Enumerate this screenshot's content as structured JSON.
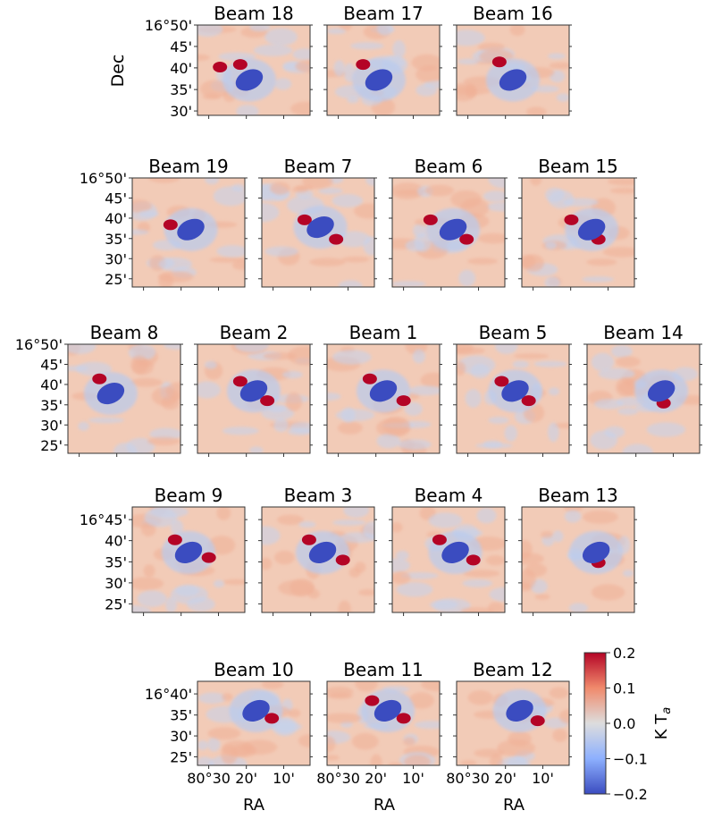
{
  "chart_data": {
    "type": "heatmap",
    "colorbar": {
      "label": "K T",
      "label_subscript": "a",
      "vmin": -0.2,
      "vmax": 0.2,
      "ticks": [
        "0.2",
        "0.1",
        "0.0",
        "−0.1",
        "−0.2"
      ],
      "colors": {
        "low": "#3b4cc0",
        "mid": "#dddddd",
        "high": "#b40426"
      }
    },
    "y_axis_label": "Dec",
    "x_axis_label": "RA",
    "x_ticks": [
      "80°30",
      "20'",
      "10'"
    ],
    "rows": [
      {
        "y_ticks": [
          "16°50'",
          "45'",
          "40'",
          "35'",
          "30'"
        ],
        "y_ticks_dec": [
          16.833,
          16.75,
          16.667,
          16.583,
          16.5
        ],
        "dec_range": [
          16.483,
          16.833
        ],
        "show_ylabel": true,
        "panels": [
          {
            "title": "Beam 18",
            "neg": {
              "ra": 80.32,
              "dec": 16.62
            },
            "pos": [
              {
                "ra": 80.36,
                "dec": 16.68
              },
              {
                "ra": 80.45,
                "dec": 16.67
              }
            ]
          },
          {
            "title": "Beam 17",
            "neg": {
              "ra": 80.32,
              "dec": 16.62
            },
            "pos": [
              {
                "ra": 80.39,
                "dec": 16.68
              }
            ]
          },
          {
            "title": "Beam 16",
            "neg": {
              "ra": 80.3,
              "dec": 16.62
            },
            "pos": [
              {
                "ra": 80.36,
                "dec": 16.69
              }
            ]
          }
        ]
      },
      {
        "y_ticks": [
          "16°50'",
          "45'",
          "40'",
          "35'",
          "30'",
          "25'"
        ],
        "y_ticks_dec": [
          16.833,
          16.75,
          16.667,
          16.583,
          16.5,
          16.417
        ],
        "dec_range": [
          16.383,
          16.833
        ],
        "show_ylabel": false,
        "panels": [
          {
            "title": "Beam 19",
            "neg": {
              "ra": 80.29,
              "dec": 16.62
            },
            "pos": [
              {
                "ra": 80.38,
                "dec": 16.64
              }
            ]
          },
          {
            "title": "Beam 7",
            "neg": {
              "ra": 80.29,
              "dec": 16.63
            },
            "pos": [
              {
                "ra": 80.36,
                "dec": 16.66
              },
              {
                "ra": 80.22,
                "dec": 16.58
              }
            ]
          },
          {
            "title": "Beam 6",
            "neg": {
              "ra": 80.28,
              "dec": 16.62
            },
            "pos": [
              {
                "ra": 80.38,
                "dec": 16.66
              },
              {
                "ra": 80.22,
                "dec": 16.58
              }
            ]
          },
          {
            "title": "Beam 15",
            "neg": {
              "ra": 80.24,
              "dec": 16.62
            },
            "pos": [
              {
                "ra": 80.33,
                "dec": 16.66
              },
              {
                "ra": 80.21,
                "dec": 16.58
              }
            ]
          }
        ]
      },
      {
        "y_ticks": [
          "16°50'",
          "45'",
          "40'",
          "35'",
          "30'",
          "25'"
        ],
        "y_ticks_dec": [
          16.833,
          16.75,
          16.667,
          16.583,
          16.5,
          16.417
        ],
        "dec_range": [
          16.383,
          16.833
        ],
        "show_ylabel": false,
        "panels": [
          {
            "title": "Beam 8",
            "neg": {
              "ra": 80.36,
              "dec": 16.63
            },
            "pos": [
              {
                "ra": 80.41,
                "dec": 16.69
              }
            ]
          },
          {
            "title": "Beam 2",
            "neg": {
              "ra": 80.3,
              "dec": 16.64
            },
            "pos": [
              {
                "ra": 80.36,
                "dec": 16.68
              },
              {
                "ra": 80.24,
                "dec": 16.6
              }
            ]
          },
          {
            "title": "Beam 1",
            "neg": {
              "ra": 80.3,
              "dec": 16.64
            },
            "pos": [
              {
                "ra": 80.36,
                "dec": 16.69
              },
              {
                "ra": 80.21,
                "dec": 16.6
              }
            ]
          },
          {
            "title": "Beam 5",
            "neg": {
              "ra": 80.29,
              "dec": 16.64
            },
            "pos": [
              {
                "ra": 80.35,
                "dec": 16.68
              },
              {
                "ra": 80.23,
                "dec": 16.6
              }
            ]
          },
          {
            "title": "Beam 14",
            "neg": {
              "ra": 80.22,
              "dec": 16.64
            },
            "pos": [
              {
                "ra": 80.21,
                "dec": 16.59
              }
            ]
          }
        ]
      },
      {
        "y_ticks": [
          "16°45'",
          "40'",
          "35'",
          "30'",
          "25'"
        ],
        "y_ticks_dec": [
          16.75,
          16.667,
          16.583,
          16.5,
          16.417
        ],
        "dec_range": [
          16.383,
          16.8
        ],
        "show_ylabel": false,
        "panels": [
          {
            "title": "Beam 9",
            "neg": {
              "ra": 80.3,
              "dec": 16.62
            },
            "pos": [
              {
                "ra": 80.36,
                "dec": 16.67
              },
              {
                "ra": 80.21,
                "dec": 16.6
              }
            ]
          },
          {
            "title": "Beam 3",
            "neg": {
              "ra": 80.28,
              "dec": 16.62
            },
            "pos": [
              {
                "ra": 80.34,
                "dec": 16.67
              },
              {
                "ra": 80.19,
                "dec": 16.59
              }
            ]
          },
          {
            "title": "Beam 4",
            "neg": {
              "ra": 80.27,
              "dec": 16.62
            },
            "pos": [
              {
                "ra": 80.34,
                "dec": 16.67
              },
              {
                "ra": 80.19,
                "dec": 16.59
              }
            ]
          },
          {
            "title": "Beam 13",
            "neg": {
              "ra": 80.22,
              "dec": 16.62
            },
            "pos": [
              {
                "ra": 80.21,
                "dec": 16.58
              }
            ]
          }
        ]
      },
      {
        "y_ticks": [
          "16°40'",
          "35'",
          "30'",
          "25'"
        ],
        "y_ticks_dec": [
          16.667,
          16.583,
          16.5,
          16.417
        ],
        "dec_range": [
          16.383,
          16.717
        ],
        "show_ylabel": false,
        "panels": [
          {
            "title": "Beam 10",
            "neg": {
              "ra": 80.29,
              "dec": 16.6
            },
            "pos": [
              {
                "ra": 80.22,
                "dec": 16.57
              }
            ]
          },
          {
            "title": "Beam 11",
            "neg": {
              "ra": 80.28,
              "dec": 16.6
            },
            "pos": [
              {
                "ra": 80.35,
                "dec": 16.64
              },
              {
                "ra": 80.21,
                "dec": 16.57
              }
            ]
          },
          {
            "title": "Beam 12",
            "neg": {
              "ra": 80.27,
              "dec": 16.6
            },
            "pos": [
              {
                "ra": 80.19,
                "dec": 16.56
              }
            ]
          }
        ]
      }
    ],
    "ra_range": [
      80.55,
      80.05
    ],
    "x_ticks_ra": [
      80.5,
      80.333,
      80.167
    ]
  }
}
